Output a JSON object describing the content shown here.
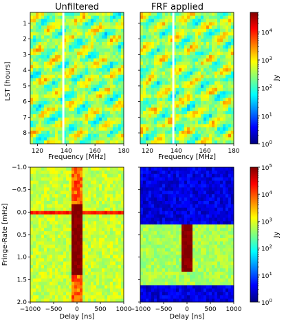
{
  "chart_data": [
    {
      "type": "heatmap",
      "title": "Unfiltered",
      "xlabel": "Frequency [MHz]",
      "ylabel": "LST [hours]",
      "xlim": [
        115,
        180
      ],
      "ylim": [
        8.7,
        0.3
      ],
      "xticks": [
        120,
        140,
        160,
        180
      ],
      "yticks": [
        1,
        2,
        3,
        4,
        5,
        6,
        7,
        8
      ],
      "flagged_channel_MHz": 138,
      "colorscale": "jet",
      "clim": [
        1,
        50000
      ],
      "log_scale": true,
      "typical_level_Jy": 300
    },
    {
      "type": "heatmap",
      "title": "FRF applied",
      "xlabel": "Frequency [MHz]",
      "ylabel": "",
      "xlim": [
        115,
        180
      ],
      "ylim": [
        8.7,
        0.3
      ],
      "xticks": [
        120,
        140,
        160,
        180
      ],
      "yticks": [
        1,
        2,
        3,
        4,
        5,
        6,
        7,
        8
      ],
      "flagged_channel_MHz": 138,
      "colorscale": "jet",
      "clim": [
        1,
        50000
      ],
      "log_scale": true,
      "typical_level_Jy": 300
    },
    {
      "type": "heatmap",
      "title": "",
      "xlabel": "Delay [ns]",
      "ylabel": "Fringe-Rate [mHz]",
      "xlim": [
        -1000,
        1000
      ],
      "ylim": [
        2.0,
        -1.0
      ],
      "xticks": [
        -1000,
        -500,
        0,
        500,
        1000
      ],
      "yticks": [
        -1.0,
        -0.5,
        0.0,
        0.5,
        1.0,
        1.5,
        2.0
      ],
      "colorscale": "jet",
      "clim": [
        1,
        100000
      ],
      "log_scale": true,
      "background_Jy": 700,
      "features": [
        {
          "kind": "horizontal_band",
          "fringe_rate_mHz": 0.0,
          "level_Jy": 20000
        },
        {
          "kind": "vertical_band",
          "delay_ns": 0,
          "fringe_rate_range_mHz": [
            -1.0,
            2.0
          ],
          "level_Jy": 8000
        },
        {
          "kind": "core",
          "delay_range_ns": [
            -100,
            100
          ],
          "fringe_rate_range_mHz": [
            -0.2,
            1.4
          ],
          "level_Jy": 90000
        }
      ]
    },
    {
      "type": "heatmap",
      "title": "",
      "xlabel": "Delay [ns]",
      "ylabel": "",
      "xlim": [
        -1000,
        1000
      ],
      "ylim": [
        2.0,
        -1.0
      ],
      "xticks": [
        -1000,
        -500,
        0,
        500,
        1000
      ],
      "yticks": [
        -1.0,
        -0.5,
        0.0,
        0.5,
        1.0,
        1.5,
        2.0
      ],
      "colorscale": "jet",
      "clim": [
        1,
        100000
      ],
      "log_scale": true,
      "background_Jy": 3,
      "features": [
        {
          "kind": "passband",
          "fringe_rate_range_mHz": [
            0.25,
            1.6
          ],
          "level_Jy": 500
        },
        {
          "kind": "core",
          "delay_range_ns": [
            -100,
            100
          ],
          "fringe_rate_range_mHz": [
            0.25,
            1.35
          ],
          "level_Jy": 90000
        }
      ]
    }
  ],
  "colorbars": [
    {
      "label": "Jy",
      "ticks": [
        "10",
        "10",
        "10",
        "10",
        "10"
      ],
      "exponents": [
        "0",
        "1",
        "2",
        "3",
        "4"
      ],
      "clim": [
        1,
        50000
      ]
    },
    {
      "label": "Jy",
      "ticks": [
        "10",
        "10",
        "10",
        "10",
        "10",
        "10"
      ],
      "exponents": [
        "0",
        "1",
        "2",
        "3",
        "4",
        "5"
      ],
      "clim": [
        1,
        100000
      ]
    }
  ]
}
